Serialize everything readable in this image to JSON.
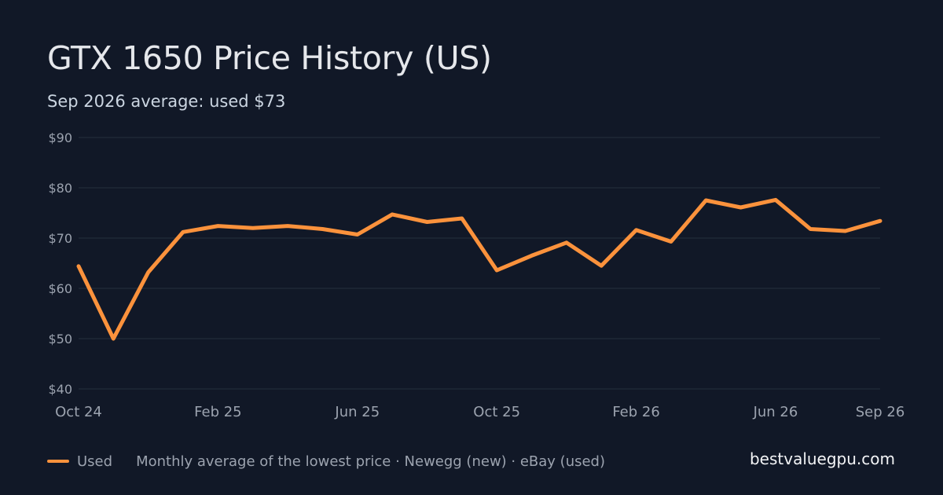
{
  "header": {
    "title": "GTX 1650 Price History (US)",
    "subtitle": "Sep 2026 average: used $73"
  },
  "legend": {
    "series_label": "Used",
    "note": "Monthly average of the lowest price · Newegg (new) · eBay (used)"
  },
  "footer": {
    "site": "bestvaluegpu.com"
  },
  "colors": {
    "background": "#111827",
    "grid": "#1f2937",
    "tick_text": "#9ca3af",
    "used_series": "#fb923c"
  },
  "chart_data": {
    "type": "line",
    "title": "GTX 1650 Price History (US)",
    "subtitle": "Sep 2026 average: used $73",
    "xlabel": "",
    "ylabel": "",
    "x": [
      "Oct 24",
      "Nov 24",
      "Dec 24",
      "Jan 25",
      "Feb 25",
      "Mar 25",
      "Apr 25",
      "May 25",
      "Jun 25",
      "Jul 25",
      "Aug 25",
      "Sep 25",
      "Oct 25",
      "Nov 25",
      "Dec 25",
      "Jan 26",
      "Feb 26",
      "Mar 26",
      "Apr 26",
      "May 26",
      "Jun 26",
      "Jul 26",
      "Aug 26",
      "Sep 26"
    ],
    "x_tick_labels": [
      "Oct 24",
      "Feb 25",
      "Jun 25",
      "Oct 25",
      "Feb 26",
      "Jun 26",
      "Sep 26"
    ],
    "y_tick_labels": [
      "$40",
      "$50",
      "$60",
      "$70",
      "$80",
      "$90"
    ],
    "y_ticks": [
      40,
      50,
      60,
      70,
      80,
      90
    ],
    "ylim": [
      40,
      90
    ],
    "grid": true,
    "legend_position": "bottom-left",
    "series": [
      {
        "name": "Used",
        "color": "#fb923c",
        "values": [
          64.4,
          50.0,
          63.2,
          71.2,
          72.4,
          72.0,
          72.4,
          71.8,
          70.7,
          74.7,
          73.2,
          73.9,
          63.6,
          66.5,
          69.1,
          64.5,
          71.6,
          69.3,
          77.5,
          76.1,
          77.6,
          71.8,
          71.4,
          73.4
        ]
      }
    ]
  }
}
